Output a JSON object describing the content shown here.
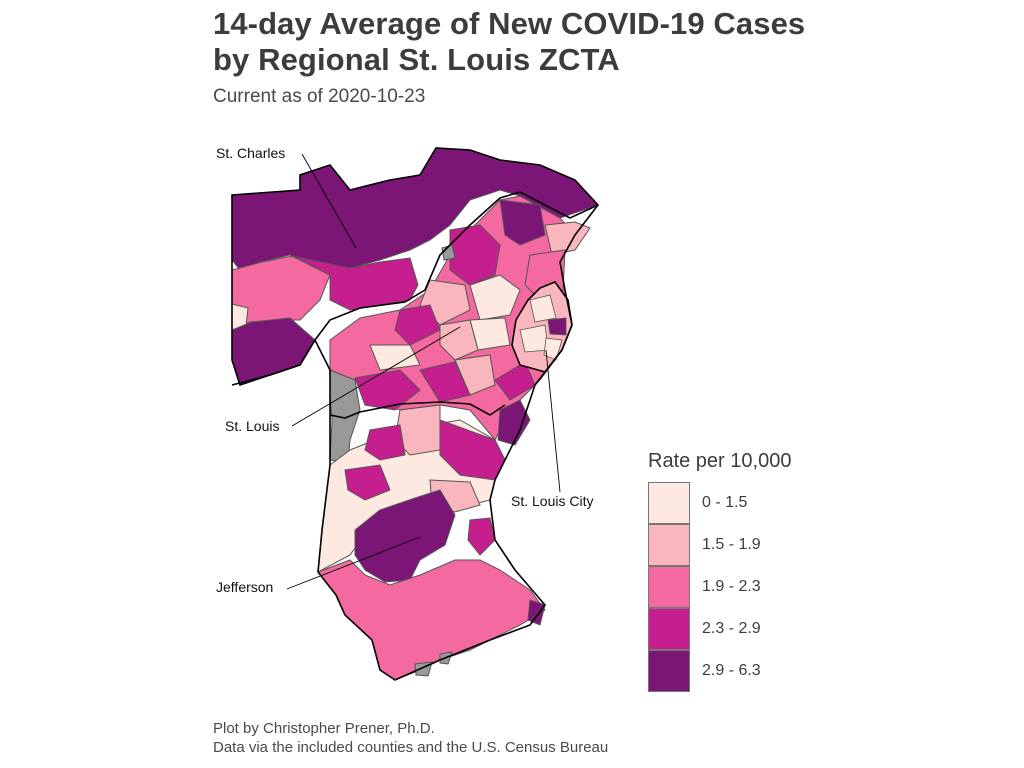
{
  "title_line1": "14-day Average of New COVID-19 Cases",
  "title_line2": "by Regional St. Louis ZCTA",
  "subtitle": "Current as of 2020-10-23",
  "caption_line1": "Plot by Christopher Prener, Ph.D.",
  "caption_line2": "Data via the included counties and the U.S. Census Bureau",
  "regions": {
    "st_charles": "St. Charles",
    "st_louis": "St. Louis",
    "st_louis_city": "St. Louis City",
    "jefferson": "Jefferson"
  },
  "legend": {
    "title": "Rate per 10,000",
    "items": [
      {
        "label": "0 - 1.5",
        "color": "#fde9df"
      },
      {
        "label": "1.5 - 1.9",
        "color": "#fab6bd"
      },
      {
        "label": "1.9 - 2.3",
        "color": "#f469a0"
      },
      {
        "label": "2.3 - 2.9",
        "color": "#c51e8e"
      },
      {
        "label": "2.9 - 6.3",
        "color": "#7b1677"
      }
    ],
    "no_data_color": "#999999"
  }
}
